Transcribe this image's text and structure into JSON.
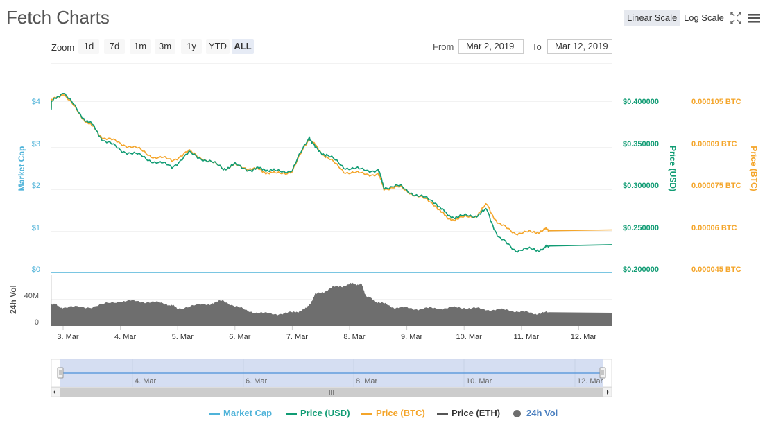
{
  "title": "Fetch Charts",
  "scale": {
    "linear_label": "Linear Scale",
    "log_label": "Log Scale",
    "selected": "Linear Scale"
  },
  "toolbar": {
    "fullscreen_icon": "expand-icon",
    "menu_icon": "hamburger-menu-icon"
  },
  "zoom": {
    "label": "Zoom",
    "options": [
      "1d",
      "7d",
      "1m",
      "3m",
      "1y",
      "YTD",
      "ALL"
    ],
    "selected": "ALL"
  },
  "range": {
    "from_label": "From",
    "from_value": "Mar 2, 2019",
    "to_label": "To",
    "to_value": "Mar 12, 2019"
  },
  "colors": {
    "market_cap": "#4fb3d9",
    "price_usd": "#119c74",
    "price_btc": "#f4a52a",
    "price_eth": "#555555",
    "volume": "#6e6e6e",
    "navigator_fill": "#d0daf1"
  },
  "chart_data": {
    "type": "line",
    "x_ticks": [
      "3. Mar",
      "4. Mar",
      "5. Mar",
      "6. Mar",
      "7. Mar",
      "8. Mar",
      "9. Mar",
      "10. Mar",
      "11. Mar",
      "12. Mar"
    ],
    "navigator_ticks": [
      "4. Mar",
      "6. Mar",
      "8. Mar",
      "10. Mar",
      "12. Mar"
    ],
    "axes": {
      "market_cap": {
        "label": "Market Cap",
        "ticks": [
          "$4",
          "$3",
          "$2",
          "$1",
          "$0"
        ],
        "range": [
          0,
          4
        ]
      },
      "price_usd": {
        "label": "Price (USD)",
        "ticks": [
          "$0.400000",
          "$0.350000",
          "$0.300000",
          "$0.250000",
          "$0.200000"
        ],
        "range": [
          0.2,
          0.4
        ]
      },
      "price_btc": {
        "label": "Price (BTC)",
        "ticks": [
          "0.000105 BTC",
          "0.00009 BTC",
          "0.000075 BTC",
          "0.00006 BTC",
          "0.000045 BTC"
        ],
        "range": [
          4.5e-05,
          0.000105
        ]
      },
      "volume": {
        "label": "24h Vol",
        "ticks": [
          "40M",
          "0"
        ],
        "range": [
          0,
          80
        ]
      }
    },
    "series": [
      {
        "name": "Market Cap",
        "values": [
          0,
          0,
          0,
          0,
          0,
          0,
          0,
          0,
          0,
          0,
          0
        ]
      },
      {
        "name": "Price (USD)",
        "day": [
          2.6,
          2.8,
          3.0,
          3.3,
          3.5,
          3.7,
          4.0,
          4.3,
          4.6,
          4.9,
          5.2,
          5.5,
          5.8,
          6.0,
          6.3,
          6.5,
          6.7,
          7.0,
          7.3,
          7.4,
          7.6,
          7.9,
          8.2,
          8.5,
          8.6,
          8.9,
          9.2,
          9.5,
          9.7,
          9.9,
          10.2,
          10.4,
          10.6,
          10.9,
          11.2,
          11.4,
          11.5
        ],
        "values": [
          0.392,
          0.398,
          0.412,
          0.384,
          0.372,
          0.354,
          0.342,
          0.336,
          0.328,
          0.322,
          0.338,
          0.33,
          0.32,
          0.324,
          0.318,
          0.32,
          0.316,
          0.318,
          0.358,
          0.344,
          0.336,
          0.322,
          0.318,
          0.318,
          0.298,
          0.298,
          0.287,
          0.28,
          0.264,
          0.262,
          0.264,
          0.27,
          0.237,
          0.223,
          0.223,
          0.224,
          0.229
        ]
      },
      {
        "name": "Price (BTC)",
        "day": [
          2.6,
          2.8,
          3.0,
          3.3,
          3.5,
          3.7,
          4.0,
          4.3,
          4.6,
          4.9,
          5.2,
          5.5,
          5.8,
          6.0,
          6.3,
          6.5,
          6.7,
          7.0,
          7.3,
          7.4,
          7.6,
          7.9,
          8.2,
          8.5,
          8.6,
          8.9,
          9.2,
          9.5,
          9.7,
          9.9,
          10.2,
          10.4,
          10.6,
          10.9,
          11.2,
          11.4,
          11.5
        ],
        "values": [
          0.000103,
          0.000105,
          0.000108,
          0.0001,
          9.6e-05,
          9.2e-05,
          9e-05,
          8.8e-05,
          8.5e-05,
          8.4e-05,
          8.7e-05,
          8.4e-05,
          8.1e-05,
          8.2e-05,
          8.1e-05,
          8e-05,
          7.9e-05,
          8e-05,
          9.2e-05,
          8.9e-05,
          8.5e-05,
          8e-05,
          7.9e-05,
          7.9e-05,
          7.4e-05,
          7.4e-05,
          7.1e-05,
          6.8e-05,
          6.3e-05,
          6.3e-05,
          6.4e-05,
          6.8e-05,
          6.1e-05,
          5.8e-05,
          5.8e-05,
          5.9e-05,
          5.9e-05
        ]
      },
      {
        "name": "24h Vol",
        "day": [
          2.6,
          2.8,
          3.0,
          3.5,
          4.0,
          4.4,
          4.8,
          5.0,
          5.5,
          5.8,
          6.2,
          6.6,
          7.0,
          7.25,
          7.4,
          7.7,
          8.0,
          8.2,
          8.3,
          8.5,
          8.8,
          9.2,
          9.6,
          10.0,
          10.4,
          10.8,
          11.2,
          11.5
        ],
        "values": [
          38,
          33,
          28,
          29,
          38,
          37,
          34,
          27,
          33,
          38,
          23,
          18,
          20,
          26,
          47,
          58,
          63,
          64,
          44,
          36,
          28,
          26,
          27,
          28,
          25,
          24,
          19,
          20
        ]
      },
      {
        "name": "Price (ETH)",
        "values": []
      }
    ],
    "legend": [
      "Market Cap",
      "Price (USD)",
      "Price (BTC)",
      "Price (ETH)",
      "24h Vol"
    ],
    "legend_position": "bottom",
    "grid": true
  }
}
